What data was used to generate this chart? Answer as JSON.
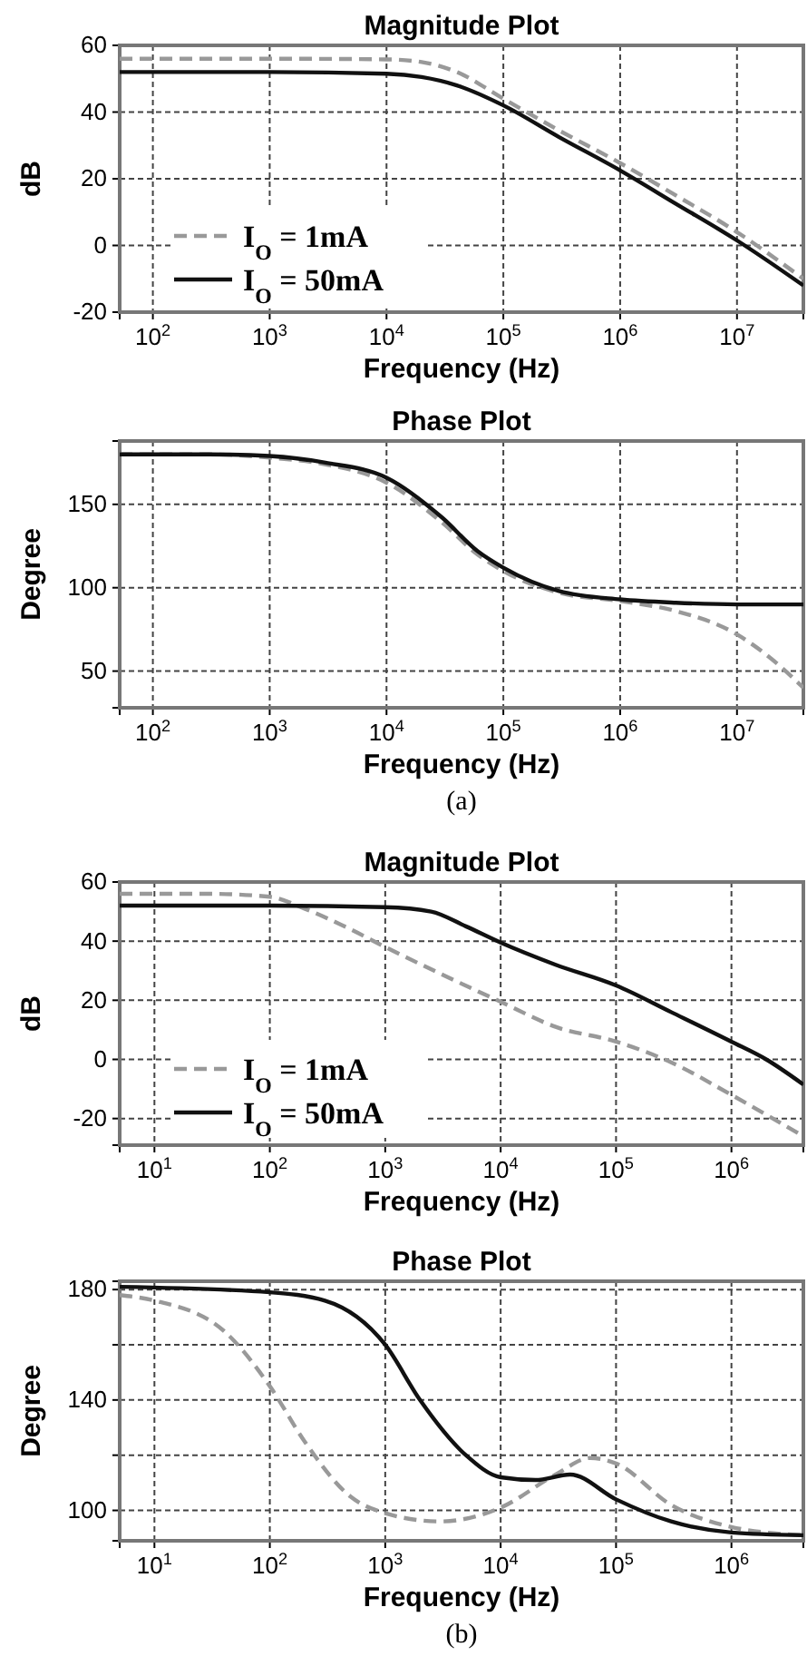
{
  "chart_data": [
    {
      "type": "line",
      "title": "Magnitude Plot",
      "xlabel": "Frequency (Hz)",
      "ylabel": "dB",
      "log": "x",
      "grid": true,
      "legend": "bottom left",
      "xlim": [
        52,
        37000000
      ],
      "ylim": [
        -20,
        60
      ],
      "xticks": [
        {
          "value": 100,
          "label": "10$^{2}$"
        },
        {
          "value": 1000,
          "label": "10$^{3}$"
        },
        {
          "value": 10000,
          "label": "10$^{4}$"
        },
        {
          "value": 100000,
          "label": "10$^{5}$"
        },
        {
          "value": 1000000,
          "label": "10$^{6}$"
        },
        {
          "value": 10000000,
          "label": "10$^{7}$"
        }
      ],
      "yticks": [
        -20,
        0,
        20,
        40,
        60
      ],
      "series": [
        {
          "name": "I$_{O}$ = 1mA",
          "color": "#999999",
          "line_style": "dashed",
          "x": [
            52,
            1000,
            10000,
            20000,
            40000,
            100000,
            300000,
            1000000,
            3000000,
            10000000,
            37000000
          ],
          "values": [
            56,
            56,
            55.8,
            55,
            52,
            44,
            34.5,
            24.7,
            15,
            4,
            -10
          ]
        },
        {
          "name": "I$_{O}$ = 50mA",
          "color": "#111111",
          "line_style": "solid",
          "x": [
            52,
            1000,
            10000,
            20000,
            40000,
            100000,
            300000,
            1000000,
            3000000,
            10000000,
            37000000
          ],
          "values": [
            52,
            52,
            51.5,
            50.5,
            48,
            42,
            32.5,
            22.5,
            12.5,
            1.5,
            -12
          ]
        }
      ]
    },
    {
      "type": "line",
      "title": "Phase Plot",
      "xlabel": "Frequency (Hz)",
      "ylabel": "Degree",
      "log": "x",
      "grid": true,
      "xlim": [
        52,
        37000000
      ],
      "ylim": [
        28,
        188
      ],
      "xticks": [
        {
          "value": 100,
          "label": "10$^{2}$"
        },
        {
          "value": 1000,
          "label": "10$^{3}$"
        },
        {
          "value": 10000,
          "label": "10$^{4}$"
        },
        {
          "value": 100000,
          "label": "10$^{5}$"
        },
        {
          "value": 1000000,
          "label": "10$^{6}$"
        },
        {
          "value": 10000000,
          "label": "10$^{7}$"
        }
      ],
      "yticks": [
        50,
        100,
        150
      ],
      "annotations": [
        "(a)"
      ],
      "series": [
        {
          "color": "#999999",
          "line_style": "dashed",
          "x": [
            52,
            300,
            1000,
            3000,
            10000,
            30000,
            60000,
            100000,
            300000,
            1000000,
            3000000,
            10000000,
            20000000,
            37000000
          ],
          "values": [
            180,
            180,
            178,
            174,
            163,
            139,
            120,
            110,
            97,
            92,
            86,
            72,
            57,
            40
          ]
        },
        {
          "color": "#111111",
          "line_style": "solid",
          "x": [
            52,
            300,
            1000,
            3000,
            10000,
            30000,
            60000,
            100000,
            300000,
            1000000,
            3000000,
            10000000,
            20000000,
            37000000
          ],
          "values": [
            180,
            180,
            179,
            175,
            166,
            142,
            122,
            112,
            98,
            93,
            91,
            90,
            90,
            90
          ]
        }
      ]
    },
    {
      "type": "line",
      "title": "Magnitude Plot",
      "xlabel": "Frequency (Hz)",
      "ylabel": "dB",
      "log": "x",
      "grid": true,
      "legend": "bottom left",
      "xlim": [
        5,
        4200000
      ],
      "ylim": [
        -29,
        60
      ],
      "xticks": [
        {
          "value": 10,
          "label": "10$^{1}$"
        },
        {
          "value": 100,
          "label": "10$^{2}$"
        },
        {
          "value": 1000,
          "label": "10$^{3}$"
        },
        {
          "value": 10000,
          "label": "10$^{4}$"
        },
        {
          "value": 100000,
          "label": "10$^{5}$"
        },
        {
          "value": 1000000,
          "label": "10$^{6}$"
        }
      ],
      "yticks": [
        -20,
        0,
        20,
        40,
        60
      ],
      "series": [
        {
          "name": "I$_{O}$ = 1mA",
          "color": "#999999",
          "line_style": "dashed",
          "x": [
            5,
            30,
            100,
            200,
            500,
            1000,
            3000,
            10000,
            30000,
            100000,
            300000,
            1000000,
            4200000
          ],
          "values": [
            56,
            56,
            55,
            51,
            44,
            38,
            29,
            19.5,
            11,
            6,
            -1,
            -12,
            -26
          ]
        },
        {
          "name": "I$_{O}$ = 50mA",
          "color": "#111111",
          "line_style": "solid",
          "x": [
            5,
            100,
            1000,
            2500,
            5000,
            10000,
            30000,
            100000,
            300000,
            1000000,
            2000000,
            4200000
          ],
          "values": [
            52,
            52,
            51.5,
            50,
            45,
            39.5,
            32,
            25,
            16,
            6,
            0,
            -8.5
          ]
        }
      ]
    },
    {
      "type": "line",
      "title": "Phase Plot",
      "xlabel": "Frequency (Hz)",
      "ylabel": "Degree",
      "log": "x",
      "grid": true,
      "xlim": [
        5,
        4200000
      ],
      "ylim": [
        89,
        183
      ],
      "xticks": [
        {
          "value": 10,
          "label": "10$^{1}$"
        },
        {
          "value": 100,
          "label": "10$^{2}$"
        },
        {
          "value": 1000,
          "label": "10$^{3}$"
        },
        {
          "value": 10000,
          "label": "10$^{4}$"
        },
        {
          "value": 100000,
          "label": "10$^{5}$"
        },
        {
          "value": 1000000,
          "label": "10$^{6}$"
        }
      ],
      "yticks": [
        100,
        {
          "value": 120,
          "label": null
        },
        140,
        {
          "value": 160,
          "label": null
        },
        180
      ],
      "annotations": [
        "(b)"
      ],
      "series": [
        {
          "color": "#999999",
          "line_style": "dashed",
          "x": [
            5,
            10,
            40,
            100,
            200,
            500,
            1000,
            3000,
            10000,
            30000,
            60000,
            100000,
            300000,
            1000000,
            4200000
          ],
          "values": [
            178,
            176,
            165,
            145,
            125,
            105,
            99,
            96,
            101,
            113,
            119,
            117,
            102,
            94,
            91
          ]
        },
        {
          "color": "#111111",
          "line_style": "solid",
          "x": [
            5,
            100,
            300,
            1000,
            2000,
            5000,
            10000,
            20000,
            40000,
            100000,
            300000,
            1000000,
            4200000
          ],
          "values": [
            181,
            179,
            176,
            160,
            140,
            120,
            112,
            111,
            113,
            104,
            96,
            92,
            91
          ]
        }
      ]
    }
  ]
}
